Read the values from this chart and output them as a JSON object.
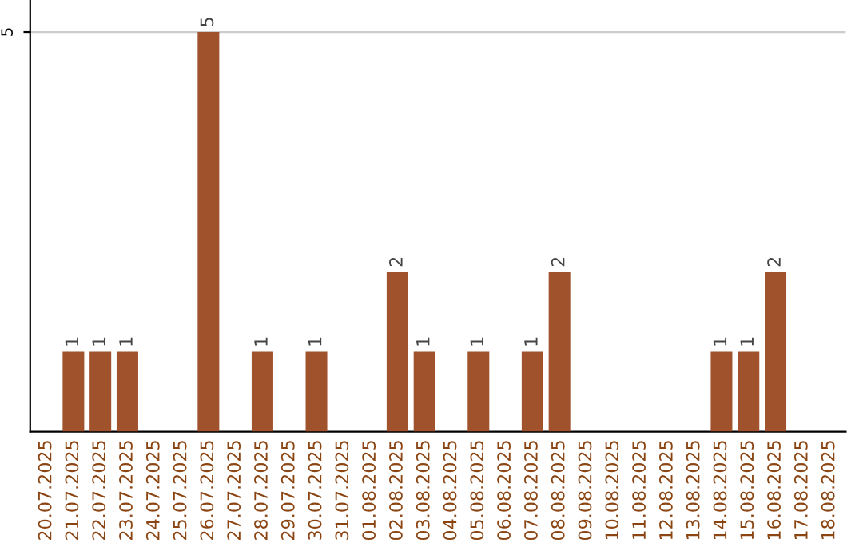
{
  "chart_data": {
    "type": "bar",
    "categories": [
      "20.07.2025",
      "21.07.2025",
      "22.07.2025",
      "23.07.2025",
      "24.07.2025",
      "25.07.2025",
      "26.07.2025",
      "27.07.2025",
      "28.07.2025",
      "29.07.2025",
      "30.07.2025",
      "31.07.2025",
      "01.08.2025",
      "02.08.2025",
      "03.08.2025",
      "04.08.2025",
      "05.08.2025",
      "06.08.2025",
      "07.08.2025",
      "08.08.2025",
      "09.08.2025",
      "10.08.2025",
      "11.08.2025",
      "12.08.2025",
      "13.08.2025",
      "14.08.2025",
      "15.08.2025",
      "16.08.2025",
      "17.08.2025",
      "18.08.2025"
    ],
    "values": [
      0,
      1,
      1,
      1,
      0,
      0,
      5,
      0,
      1,
      0,
      1,
      0,
      0,
      2,
      1,
      0,
      1,
      0,
      1,
      2,
      0,
      0,
      0,
      0,
      0,
      1,
      1,
      2,
      0,
      0
    ],
    "value_labels": [
      null,
      "1",
      "1",
      "1",
      null,
      null,
      "5",
      null,
      "1",
      null,
      "1",
      null,
      null,
      "2",
      "1",
      null,
      "1",
      null,
      "1",
      "2",
      null,
      null,
      null,
      null,
      null,
      "1",
      "1",
      "2",
      null,
      null
    ],
    "color": "#a0522d",
    "ylim": [
      0,
      5.4
    ],
    "yticks": [
      5
    ],
    "grid": "y"
  }
}
